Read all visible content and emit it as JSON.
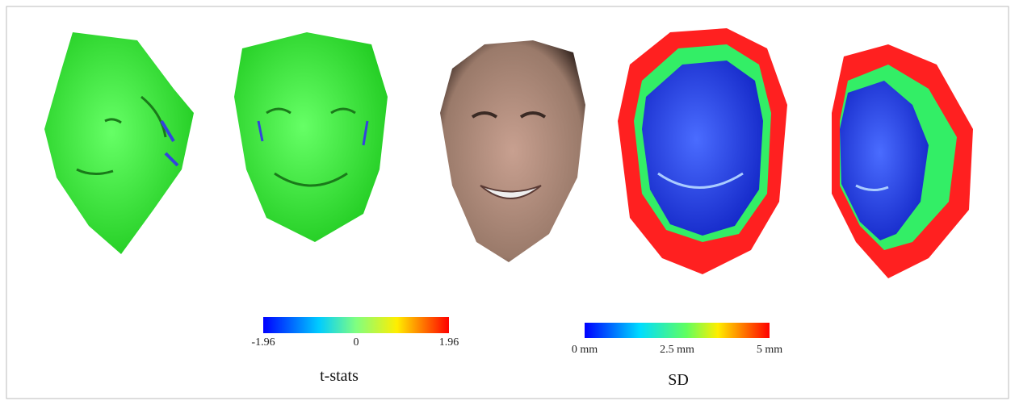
{
  "colorbars": [
    {
      "title": "t-stats",
      "lim": [
        -1.96,
        1.96
      ],
      "ticks": [
        -1.96,
        0,
        1.96
      ]
    },
    {
      "title": "SD",
      "lim": [
        0,
        5
      ],
      "ticks": [
        {
          "value": 0,
          "label": "0 mm"
        },
        {
          "value": 2.5,
          "label": "2.5 mm"
        },
        {
          "value": 5,
          "label": "5 mm"
        }
      ]
    }
  ]
}
